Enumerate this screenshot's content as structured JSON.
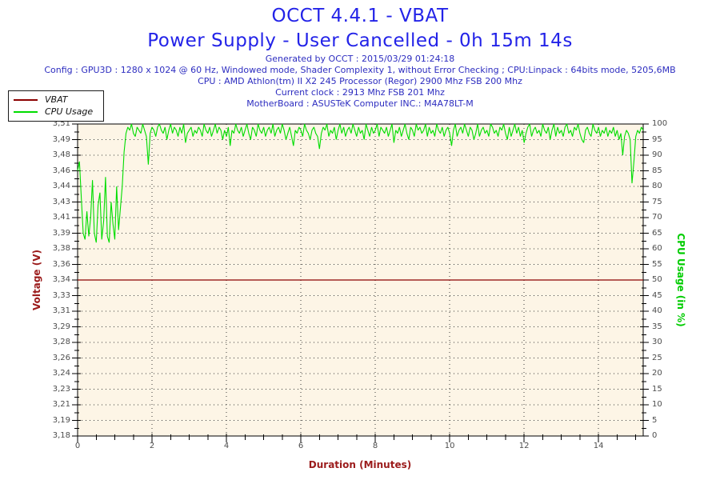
{
  "header": {
    "title": "OCCT 4.4.1 - VBAT",
    "subtitle": "Power Supply - User Cancelled - 0h 15m 14s",
    "generated": "Generated by OCCT : 2015/03/29 01:24:18",
    "config": "Config : GPU3D : 1280 x 1024 @ 60 Hz, Windowed mode, Shader Complexity 1, without Error Checking ; CPU:Linpack : 64bits mode, 5205,6MB",
    "cpu": "CPU : AMD Athlon(tm) II X2 245 Processor (Regor) 2900 Mhz FSB 200 Mhz",
    "clock": "Current clock : 2913 Mhz FSB 201 Mhz",
    "motherboard": "MotherBoard : ASUSTeK Computer INC.: M4A78LT-M"
  },
  "legend": {
    "items": [
      {
        "label": "VBAT",
        "color": "#8b0000"
      },
      {
        "label": "CPU Usage",
        "color": "#00dd00"
      }
    ]
  },
  "colors": {
    "title_blue": "#2323e8",
    "info_blue": "#2d2dc0",
    "axis_red": "#9b1b1b",
    "vbat_line": "#8b0000",
    "cpu_line": "#00dd00",
    "cpu_label_green": "#00cc00",
    "plot_bg": "#fdf5e6",
    "grid_dots": "#3a3a3a",
    "axis_line": "#000000",
    "tick_text": "#4d4d4d"
  },
  "chart_data": {
    "type": "line",
    "title": "OCCT 4.4.1 - VBAT",
    "subtitle": "Power Supply - User Cancelled - 0h 15m 14s",
    "xlabel": "Duration (Minutes)",
    "ylabel_left": "Voltage (V)",
    "ylabel_right": "CPU Usage (in %)",
    "grid": "dotted, horizontal at every labeled tick, vertical every 2 minutes",
    "legend_position": "top-left",
    "x_range": [
      0,
      15.2
    ],
    "x_major_ticks": [
      0,
      2,
      4,
      6,
      8,
      10,
      12,
      14
    ],
    "x_major_tick_labels": [
      "0",
      "2",
      "4",
      "6",
      "8",
      "10",
      "12",
      "14"
    ],
    "x_minor_step": 0.5,
    "left_axis": {
      "label": "Voltage (V)",
      "min": 3.18,
      "max": 3.51,
      "tick_labels": [
        "3,51",
        "3,49",
        "3,48",
        "3,46",
        "3,44",
        "3,43",
        "3,41",
        "3,39",
        "3,38",
        "3,36",
        "3,34",
        "3,33",
        "3,31",
        "3,29",
        "3,28",
        "3,26",
        "3,24",
        "3,23",
        "3,21",
        "3,19",
        "3,18"
      ]
    },
    "right_axis": {
      "label": "CPU Usage (in %)",
      "min": 0,
      "max": 100,
      "tick_labels": [
        "100",
        "95",
        "90",
        "85",
        "80",
        "75",
        "70",
        "65",
        "60",
        "55",
        "50",
        "45",
        "40",
        "35",
        "30",
        "25",
        "20",
        "15",
        "10",
        "5",
        "0"
      ]
    },
    "series": [
      {
        "name": "VBAT",
        "axis": "left",
        "color": "#8b0000",
        "type": "constant",
        "value": 3.345,
        "x_start": 0,
        "x_end": 15.2
      },
      {
        "name": "CPU Usage",
        "axis": "right",
        "color": "#00dd00",
        "type": "sampled",
        "x_start": 0,
        "x_step": 0.05,
        "values": [
          85,
          88,
          76,
          65,
          63,
          72,
          64,
          70,
          82,
          65,
          62,
          74,
          78,
          63,
          69,
          83,
          64,
          62,
          75,
          68,
          63,
          80,
          66,
          73,
          80,
          91,
          97,
          99,
          98,
          100,
          97,
          96,
          99,
          98,
          97,
          100,
          98,
          96,
          87,
          97,
          99,
          98,
          96,
          99,
          100,
          98,
          97,
          99,
          95,
          98,
          100,
          97,
          99,
          98,
          96,
          99,
          97,
          100,
          94,
          97,
          98,
          99,
          96,
          98,
          97,
          99,
          98,
          96,
          100,
          98,
          97,
          99,
          96,
          98,
          100,
          97,
          99,
          98,
          95,
          98,
          96,
          99,
          93,
          98,
          97,
          100,
          98,
          97,
          99,
          96,
          98,
          100,
          97,
          95,
          99,
          98,
          96,
          100,
          98,
          97,
          99,
          96,
          98,
          99,
          97,
          100,
          96,
          98,
          99,
          97,
          100,
          98,
          95,
          97,
          99,
          96,
          93,
          98,
          97,
          99,
          98,
          96,
          100,
          98,
          97,
          95,
          98,
          99,
          97,
          96,
          92,
          97,
          99,
          98,
          100,
          96,
          98,
          97,
          99,
          95,
          98,
          100,
          97,
          99,
          96,
          98,
          99,
          97,
          100,
          98,
          96,
          99,
          97,
          98,
          95,
          100,
          98,
          96,
          99,
          97,
          98,
          100,
          96,
          99,
          98,
          97,
          99,
          96,
          98,
          100,
          94,
          98,
          97,
          99,
          96,
          98,
          100,
          97,
          95,
          99,
          98,
          96,
          100,
          98,
          99,
          97,
          98,
          100,
          96,
          99,
          97,
          98,
          96,
          100,
          98,
          97,
          99,
          96,
          98,
          99,
          97,
          93,
          98,
          100,
          96,
          98,
          99,
          97,
          100,
          98,
          96,
          99,
          98,
          95,
          97,
          100,
          96,
          98,
          99,
          97,
          98,
          96,
          100,
          99,
          97,
          98,
          96,
          99,
          98,
          100,
          97,
          95,
          99,
          96,
          98,
          100,
          97,
          99,
          96,
          98,
          94,
          97,
          99,
          100,
          96,
          98,
          99,
          97,
          98,
          96,
          100,
          98,
          97,
          99,
          95,
          98,
          100,
          96,
          99,
          97,
          98,
          96,
          99,
          100,
          97,
          98,
          96,
          99,
          98,
          100,
          97,
          95,
          94,
          98,
          99,
          97,
          96,
          100,
          98,
          97,
          99,
          96,
          98,
          97,
          99,
          96,
          98,
          97,
          99,
          96,
          98,
          95,
          97,
          90,
          96,
          98,
          97,
          95,
          81,
          88,
          96,
          98,
          97,
          99,
          98
        ]
      }
    ]
  }
}
